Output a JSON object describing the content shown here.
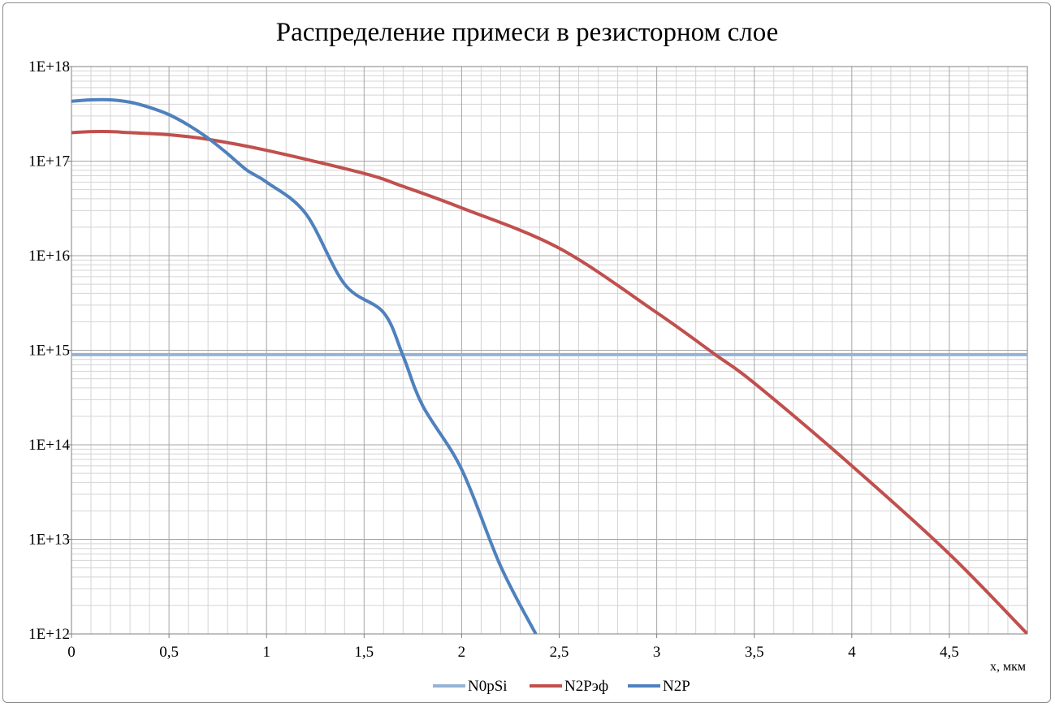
{
  "chart_data": {
    "type": "line",
    "title": "Распределение примеси в резисторном слое",
    "xlabel": "x, мкм",
    "ylabel": "",
    "xlim": [
      0,
      4.9
    ],
    "ylim": [
      1000000000000.0,
      1e+18
    ],
    "yscale": "log",
    "grid": true,
    "legend_position": "bottom",
    "x_ticks": [
      "0",
      "0,5",
      "1",
      "1,5",
      "2",
      "2,5",
      "3",
      "3,5",
      "4",
      "4,5"
    ],
    "x_tick_values": [
      0,
      0.5,
      1,
      1.5,
      2,
      2.5,
      3,
      3.5,
      4,
      4.5
    ],
    "y_ticks": [
      "1E+12",
      "1E+13",
      "1E+14",
      "1E+15",
      "1E+16",
      "1E+17",
      "1E+18"
    ],
    "series": [
      {
        "name": "N0pSi",
        "color": "#95b3d7",
        "x": [
          0,
          4.9
        ],
        "y": [
          900000000000000.0,
          900000000000000.0
        ]
      },
      {
        "name": "N2Pэф",
        "color": "#c0504d",
        "x": [
          0,
          0.1,
          0.2,
          0.3,
          0.5,
          0.7,
          1.0,
          1.5,
          1.7,
          2.0,
          2.5,
          3.0,
          3.3,
          3.5,
          4.0,
          4.5,
          4.9
        ],
        "y": [
          2e+17,
          2.05e+17,
          2.05e+17,
          2e+17,
          1.9e+17,
          1.7e+17,
          1.3e+17,
          7.4e+16,
          5.4e+16,
          3.2e+16,
          1.2e+16,
          2500000000000000.0,
          900000000000000.0,
          450000000000000.0,
          60000000000000.0,
          7000000000000.0,
          1000000000000.0
        ]
      },
      {
        "name": "N2P",
        "color": "#4f81bd",
        "x": [
          0,
          0.1,
          0.2,
          0.3,
          0.4,
          0.5,
          0.6,
          0.7,
          0.8,
          0.9,
          1.0,
          1.2,
          1.4,
          1.6,
          1.7,
          1.8,
          2.0,
          2.2,
          2.38
        ],
        "y": [
          4.3e+17,
          4.45e+17,
          4.45e+17,
          4.2e+17,
          3.7e+17,
          3.1e+17,
          2.4e+17,
          1.75e+17,
          1.2e+17,
          8e+16,
          6e+16,
          2.8e+16,
          5000000000000000.0,
          2500000000000000.0,
          870000000000000.0,
          260000000000000.0,
          55000000000000.0,
          5200000000000.0,
          1000000000000.0
        ]
      }
    ]
  }
}
